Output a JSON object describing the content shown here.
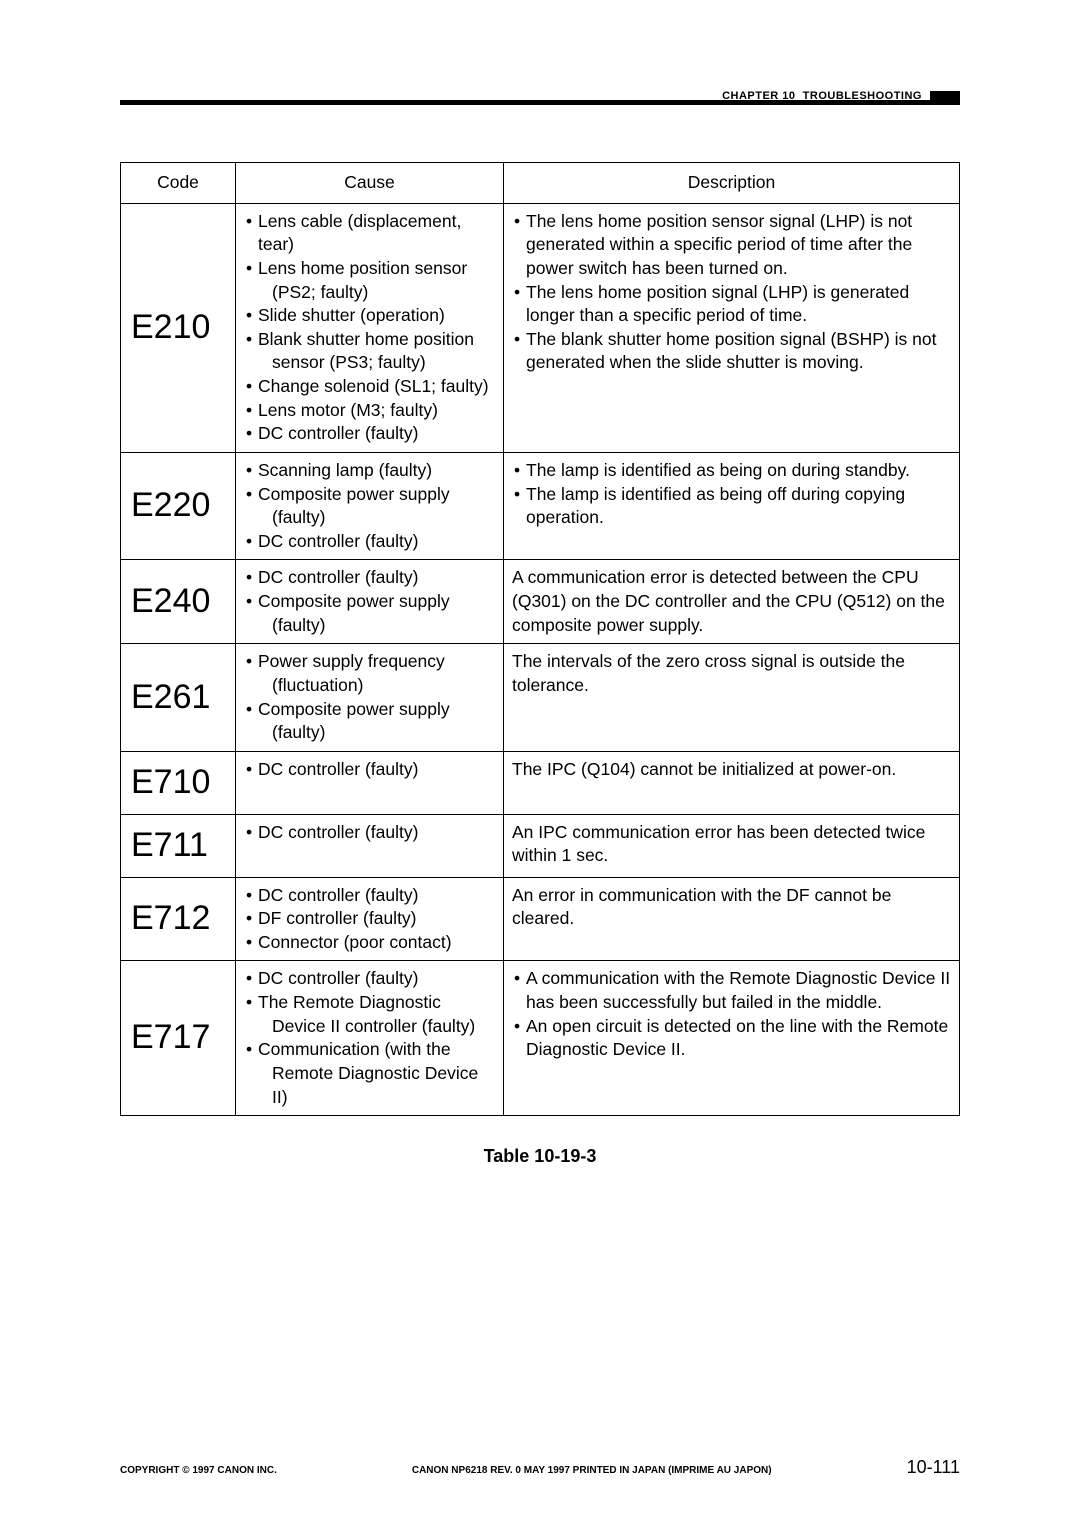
{
  "header": {
    "chapter": "CHAPTER 10",
    "title": "TROUBLESHOOTING"
  },
  "table": {
    "columns": [
      "Code",
      "Cause",
      "Description"
    ],
    "rows": [
      {
        "code": "E210",
        "causes": [
          "Lens cable (displacement, tear)",
          "Lens home position sensor (PS2; faulty)",
          "Slide shutter (operation)",
          "Blank shutter home position sensor (PS3; faulty)",
          "Change solenoid (SL1; faulty)",
          "Lens motor (M3; faulty)",
          "DC controller (faulty)"
        ],
        "descriptions": [
          "The lens home position sensor signal (LHP) is not generated within a specific period of time after the power switch has been turned on.",
          "The lens home position signal (LHP) is generated longer than a specific period of time.",
          "The blank shutter home position signal (BSHP) is not generated when the slide shutter is moving."
        ]
      },
      {
        "code": "E220",
        "causes": [
          "Scanning lamp (faulty)",
          "Composite power supply (faulty)",
          "DC controller (faulty)"
        ],
        "descriptions": [
          "The lamp is identified as being on during standby.",
          "The lamp is identified as being off during copying operation."
        ]
      },
      {
        "code": "E240",
        "causes": [
          "DC controller (faulty)",
          "Composite power supply (faulty)"
        ],
        "description_plain": "A communication error is detected between the CPU (Q301) on the DC controller and the CPU (Q512) on the composite power supply."
      },
      {
        "code": "E261",
        "causes": [
          "Power supply frequency (fluctuation)",
          "Composite power supply (faulty)"
        ],
        "description_plain": "The intervals of the zero cross signal is outside the tolerance."
      },
      {
        "code": "E710",
        "causes": [
          "DC controller (faulty)"
        ],
        "description_plain": "The IPC (Q104) cannot be initialized at power-on."
      },
      {
        "code": "E711",
        "causes": [
          "DC controller (faulty)"
        ],
        "description_plain": "An IPC communication error has been detected twice within 1 sec."
      },
      {
        "code": "E712",
        "causes": [
          "DC controller (faulty)",
          "DF controller (faulty)",
          "Connector (poor contact)"
        ],
        "description_plain": "An error in communication with the DF cannot be cleared."
      },
      {
        "code": "E717",
        "causes": [
          "DC controller (faulty)",
          "The Remote Diagnostic Device II controller (faulty)",
          "Communication (with the Remote Diagnostic Device II)"
        ],
        "descriptions": [
          "A communication with the Remote Diagnostic Device II has been successfully but failed in the middle.",
          "An open circuit is detected on the line with the Remote Diagnostic Device II."
        ]
      }
    ]
  },
  "table_caption": "Table 10-19-3",
  "footer": {
    "copyright": "COPYRIGHT © 1997 CANON INC.",
    "center": "CANON NP6218 REV. 0 MAY 1997 PRINTED IN JAPAN (IMPRIME AU JAPON)",
    "page": "10-111"
  }
}
